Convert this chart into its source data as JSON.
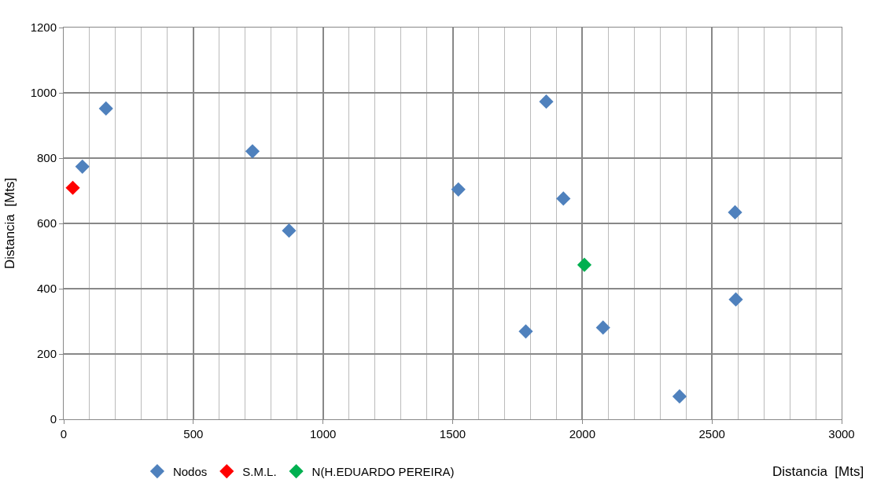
{
  "chart_data": {
    "type": "scatter",
    "xlabel": "Distancia  [Mts]",
    "ylabel": "Distancia  [Mts]",
    "series": [
      {
        "name": "Nodos",
        "color": "#4f81bd",
        "x": [
          72,
          163,
          728,
          869,
          1522,
          1861,
          1927,
          1782,
          2080,
          2589,
          2592,
          2375
        ],
        "values": [
          774,
          952,
          821,
          578,
          704,
          973,
          676,
          269,
          281,
          634,
          367,
          70
        ]
      },
      {
        "name": "S.M.L.",
        "color": "#ff0000",
        "x": [
          35
        ],
        "values": [
          709
        ]
      },
      {
        "name": "N(H.EDUARDO PEREIRA)",
        "color": "#00b050",
        "x": [
          2008
        ],
        "values": [
          473
        ]
      }
    ],
    "xlim": [
      0,
      3000
    ],
    "xticks": [
      0,
      500,
      1000,
      1500,
      2000,
      2500,
      3000
    ],
    "ylim": [
      0,
      1200
    ],
    "yticks": [
      0,
      200,
      400,
      600,
      800,
      1000,
      1200
    ],
    "grid": true,
    "legend": "bottom",
    "marker": "diamond"
  }
}
